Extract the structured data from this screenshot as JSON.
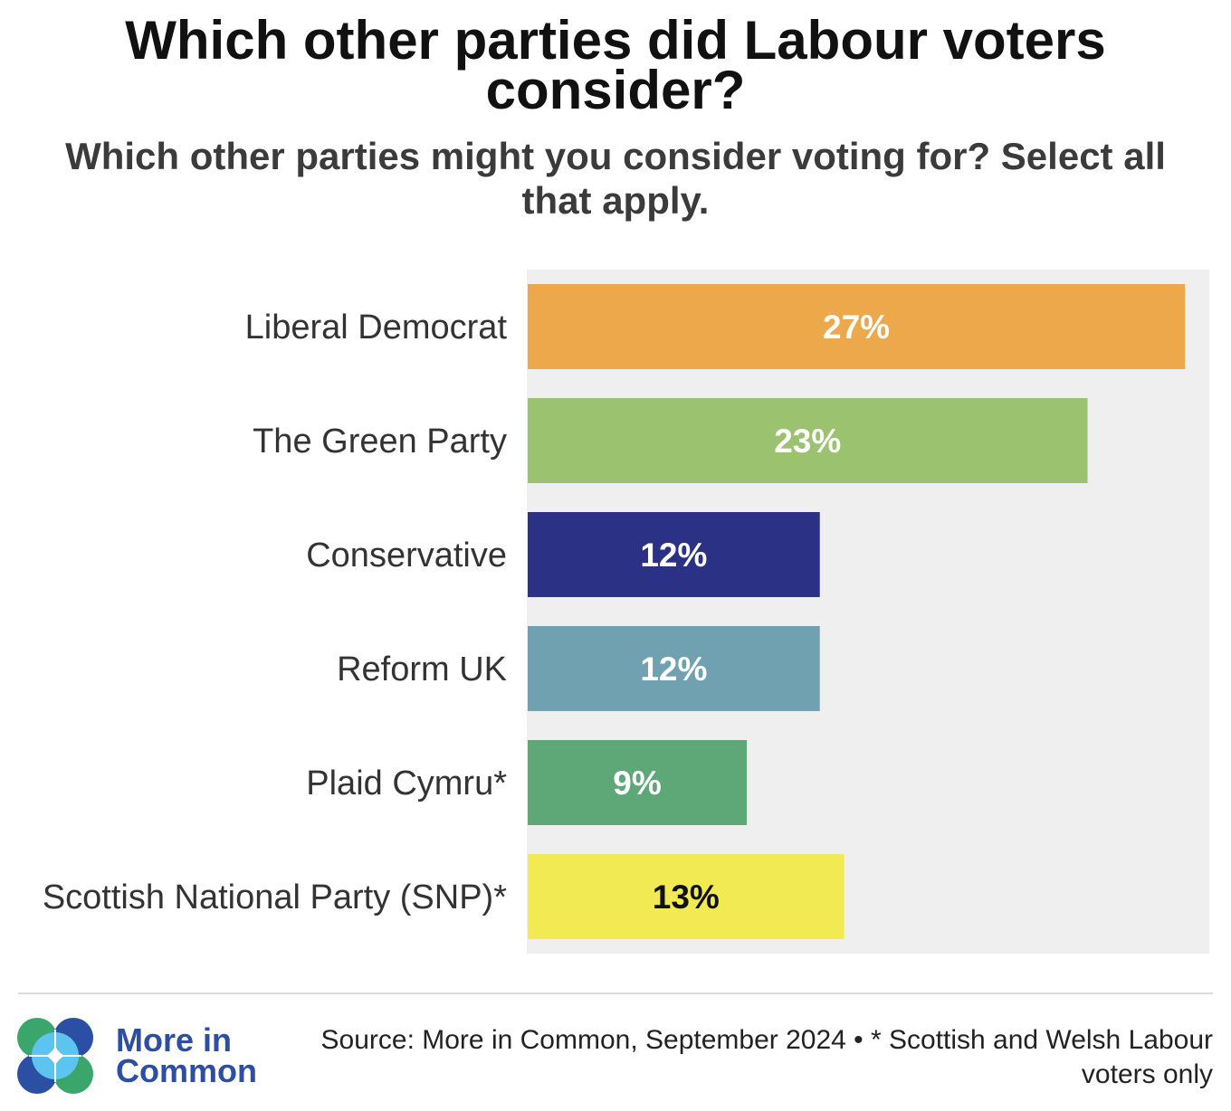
{
  "chart_data": {
    "type": "bar",
    "title": "Which other parties did Labour voters consider?",
    "subtitle": "Which other parties might you consider voting for? Select all that apply.",
    "categories": [
      "Liberal Democrat",
      "The Green Party",
      "Conservative",
      "Reform UK",
      "Plaid Cymru*",
      "Scottish National Party (SNP)*"
    ],
    "values": [
      27,
      23,
      12,
      12,
      9,
      13
    ],
    "unit": "%",
    "xlim": [
      0,
      28
    ],
    "xlabel": "",
    "ylabel": "",
    "grid": false,
    "colors": [
      "#ECA84B",
      "#9BC36F",
      "#2B3184",
      "#6FA1B1",
      "#5EA877",
      "#F2EA53"
    ],
    "label_colors": [
      "#FFFFFF",
      "#FFFFFF",
      "#FFFFFF",
      "#FFFFFF",
      "#FFFFFF",
      "#111111"
    ],
    "background": "#EFEFEF"
  },
  "footer": {
    "brand": "More in Common",
    "brand_color": "#2D4EA2",
    "source": "Source: More in Common, September 2024 • * Scottish and Welsh Labour voters only",
    "logo": {
      "icon": "more-in-common-logo-icon",
      "green": "#3AA66B",
      "blue": "#2A4FA3",
      "light_blue": "#5CC4EE"
    }
  }
}
